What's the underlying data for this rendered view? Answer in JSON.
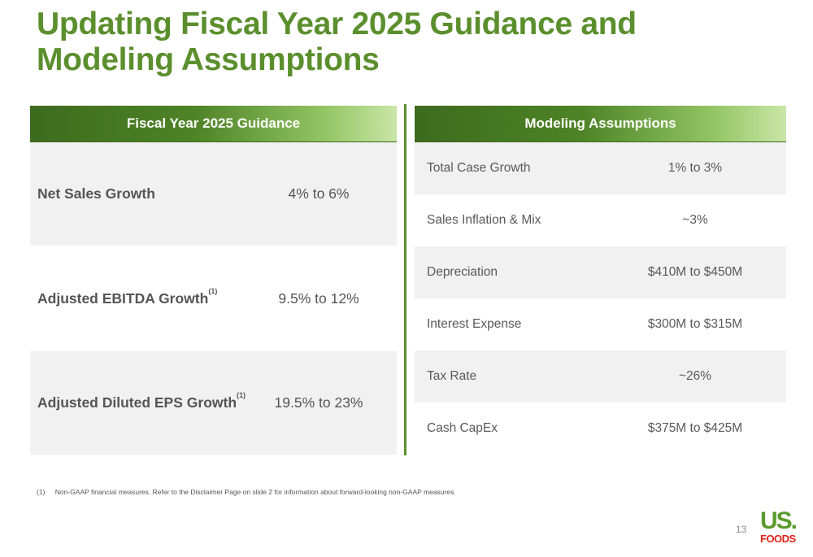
{
  "title": "Updating Fiscal Year 2025 Guidance and Modeling Assumptions",
  "guidance": {
    "header": "Fiscal Year 2025 Guidance",
    "rows": [
      {
        "label": "Net Sales Growth",
        "footnote_mark": "",
        "value": "4% to 6%"
      },
      {
        "label": "Adjusted EBITDA Growth",
        "footnote_mark": "(1)",
        "value": "9.5% to 12%"
      },
      {
        "label": "Adjusted Diluted EPS Growth",
        "footnote_mark": "(1)",
        "value": "19.5% to 23%"
      }
    ]
  },
  "modeling": {
    "header": "Modeling Assumptions",
    "rows": [
      {
        "label": "Total Case Growth",
        "value": "1% to 3%"
      },
      {
        "label": "Sales Inflation & Mix",
        "value": "~3%"
      },
      {
        "label": "Depreciation",
        "value": "$410M to $450M"
      },
      {
        "label": "Interest Expense",
        "value": "$300M to $315M"
      },
      {
        "label": "Tax Rate",
        "value": "~26%"
      },
      {
        "label": "Cash CapEx",
        "value": "$375M to $425M"
      }
    ]
  },
  "footnote": {
    "number": "(1)",
    "text": "Non-GAAP financial measures. Refer to the Disclaimer Page on slide 2 for information about forward-looking non-GAAP measures."
  },
  "page_number": "13",
  "logo": {
    "line1": "US.",
    "line2": "FOODS"
  },
  "colors": {
    "brand_green": "#5b8f2d",
    "dark_green": "#3d6b1e",
    "logo_red": "#e2231a",
    "logo_green": "#5b9a2e"
  }
}
